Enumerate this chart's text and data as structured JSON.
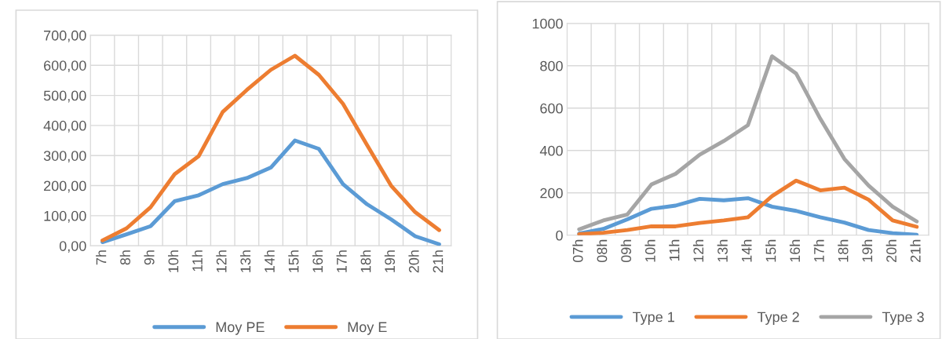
{
  "chart_data": [
    {
      "type": "line",
      "categories": [
        "7h",
        "8h",
        "9h",
        "10h",
        "11h",
        "12h",
        "13h",
        "14h",
        "15h",
        "16h",
        "17h",
        "18h",
        "19h",
        "20h",
        "21h"
      ],
      "series": [
        {
          "name": "Moy PE",
          "color": "#5b9bd5",
          "values": [
            12,
            38,
            65,
            148,
            168,
            205,
            225,
            260,
            350,
            322,
            205,
            138,
            88,
            32,
            5
          ]
        },
        {
          "name": "Moy E",
          "color": "#ed7d31",
          "values": [
            18,
            58,
            128,
            238,
            298,
            445,
            518,
            585,
            632,
            568,
            472,
            335,
            200,
            112,
            52
          ]
        }
      ],
      "ylim": [
        0,
        700
      ],
      "yticks": [
        {
          "value": 0,
          "label": "0,00"
        },
        {
          "value": 100,
          "label": "100,00"
        },
        {
          "value": 200,
          "label": "200,00"
        },
        {
          "value": 300,
          "label": "300,00"
        },
        {
          "value": 400,
          "label": "400,00"
        },
        {
          "value": 500,
          "label": "500,00"
        },
        {
          "value": 600,
          "label": "600,00"
        },
        {
          "value": 700,
          "label": "700,00"
        }
      ],
      "grid": true,
      "legend": "bottom",
      "marker": "none",
      "line_style": "solid"
    },
    {
      "type": "line",
      "categories": [
        "07h",
        "08h",
        "09h",
        "10h",
        "11h",
        "12h",
        "13h",
        "14h",
        "15h",
        "16h",
        "17h",
        "18h",
        "19h",
        "20h",
        "21h"
      ],
      "series": [
        {
          "name": "Type 1",
          "color": "#5b9bd5",
          "values": [
            8,
            30,
            75,
            125,
            140,
            172,
            165,
            175,
            135,
            115,
            85,
            60,
            25,
            10,
            2
          ]
        },
        {
          "name": "Type 2",
          "color": "#ed7d31",
          "values": [
            5,
            12,
            25,
            42,
            42,
            58,
            70,
            85,
            185,
            258,
            212,
            225,
            168,
            70,
            40
          ]
        },
        {
          "name": "Type 3",
          "color": "#a5a5a5",
          "values": [
            28,
            70,
            98,
            240,
            290,
            380,
            445,
            520,
            845,
            763,
            550,
            360,
            235,
            135,
            65
          ]
        }
      ],
      "ylim": [
        0,
        1000
      ],
      "yticks": [
        0,
        200,
        400,
        600,
        800,
        1000
      ],
      "grid": true,
      "legend": "bottom",
      "marker": "none",
      "line_style": "solid"
    }
  ]
}
